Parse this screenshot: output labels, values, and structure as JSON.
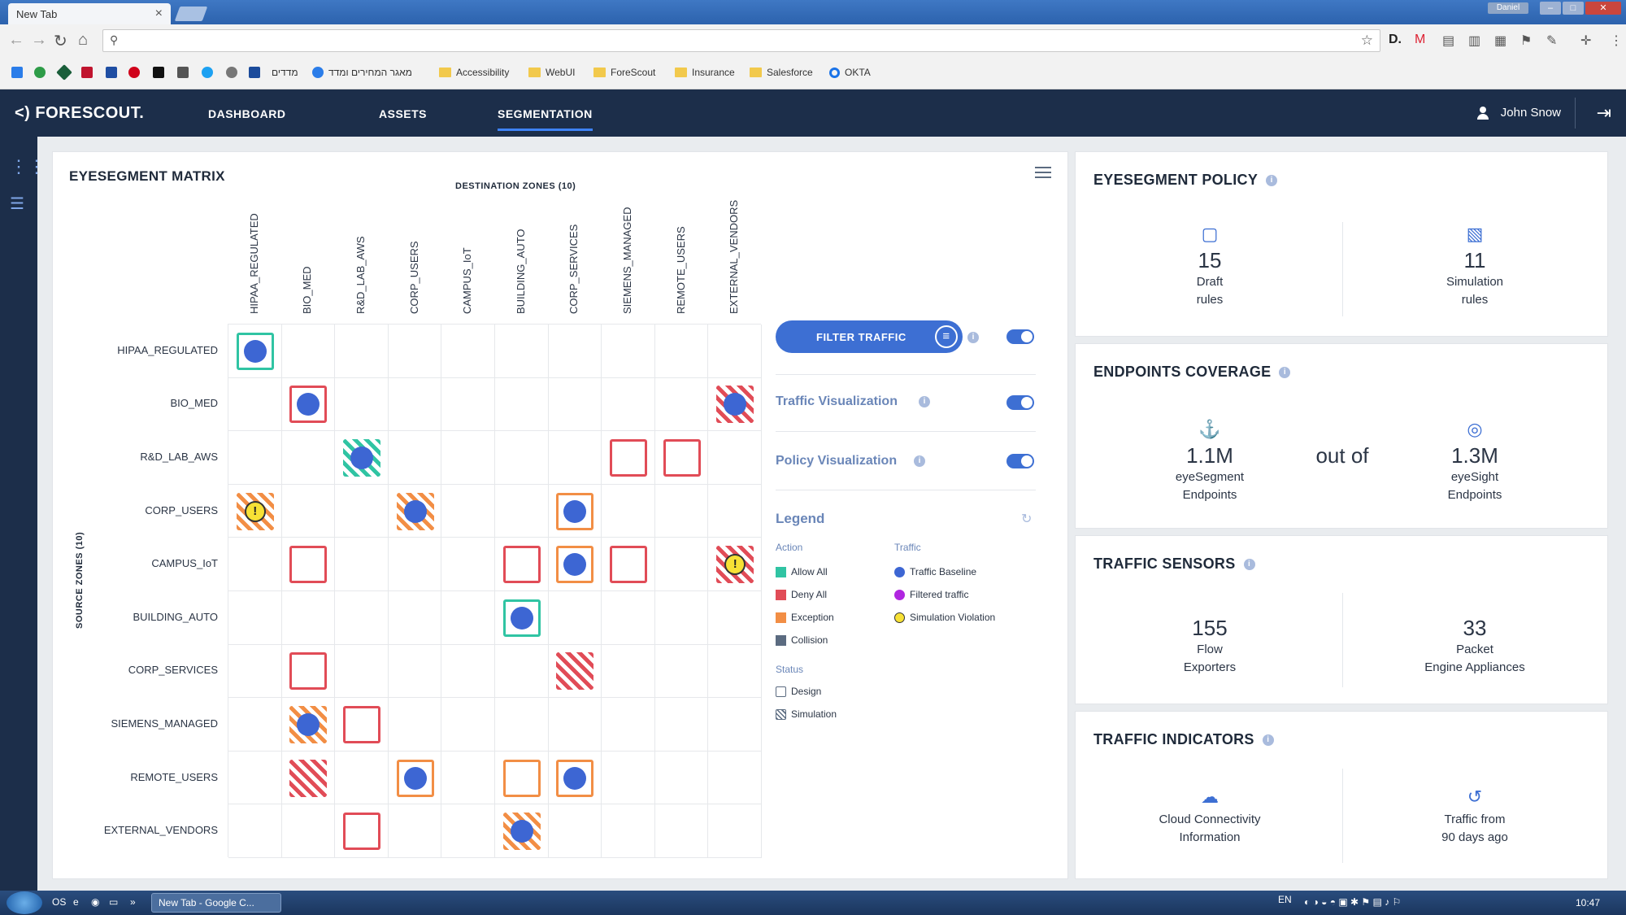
{
  "browser": {
    "tab_title": "New Tab",
    "tab_close": "×",
    "window_user": "Daniel",
    "bookmarks": [
      {
        "label": "מדדים"
      },
      {
        "label": "מאגר המחירים ומדד"
      },
      {
        "label": "Accessibility"
      },
      {
        "label": "WebUI"
      },
      {
        "label": "ForeScout"
      },
      {
        "label": "Insurance"
      },
      {
        "label": "Salesforce"
      },
      {
        "label": "OKTA"
      }
    ]
  },
  "app": {
    "logo": "<) FORESCOUT.",
    "nav": [
      "DASHBOARD",
      "ASSETS",
      "SEGMENTATION"
    ],
    "active_nav": "SEGMENTATION",
    "user": "John Snow"
  },
  "matrix": {
    "title": "EYESEGMENT MATRIX",
    "dest_title": "DESTINATION ZONES (10)",
    "src_title": "SOURCE ZONES (10)",
    "columns": [
      "HIPAA_REGULATED",
      "BIO_MED",
      "R&D_LAB_AWS",
      "CORP_USERS",
      "CAMPUS_IoT",
      "BUILDING_AUTO",
      "CORP_SERVICES",
      "SIEMENS_MANAGED",
      "REMOTE_USERS",
      "EXTERNAL_VENDORS"
    ],
    "rows": [
      "HIPAA_REGULATED",
      "BIO_MED",
      "R&D_LAB_AWS",
      "CORP_USERS",
      "CAMPUS_IoT",
      "BUILDING_AUTO",
      "CORP_SERVICES",
      "SIEMENS_MANAGED",
      "REMOTE_USERS",
      "EXTERNAL_VENDORS"
    ],
    "cells": [
      {
        "row": 0,
        "col": 0,
        "action": "allow",
        "status": "design",
        "traffic": "baseline"
      },
      {
        "row": 1,
        "col": 1,
        "action": "deny",
        "status": "design",
        "traffic": "baseline"
      },
      {
        "row": 1,
        "col": 9,
        "action": "deny",
        "status": "simulation",
        "traffic": "baseline"
      },
      {
        "row": 2,
        "col": 2,
        "action": "allow",
        "status": "simulation",
        "traffic": "baseline"
      },
      {
        "row": 2,
        "col": 7,
        "action": "deny",
        "status": "design",
        "traffic": "none"
      },
      {
        "row": 2,
        "col": 8,
        "action": "deny",
        "status": "design",
        "traffic": "none"
      },
      {
        "row": 3,
        "col": 0,
        "action": "exception",
        "status": "simulation",
        "traffic": "violation"
      },
      {
        "row": 3,
        "col": 3,
        "action": "exception",
        "status": "simulation",
        "traffic": "baseline"
      },
      {
        "row": 3,
        "col": 6,
        "action": "exception",
        "status": "design",
        "traffic": "baseline"
      },
      {
        "row": 4,
        "col": 1,
        "action": "deny",
        "status": "design",
        "traffic": "none"
      },
      {
        "row": 4,
        "col": 5,
        "action": "deny",
        "status": "design",
        "traffic": "none"
      },
      {
        "row": 4,
        "col": 6,
        "action": "exception",
        "status": "design",
        "traffic": "baseline"
      },
      {
        "row": 4,
        "col": 7,
        "action": "deny",
        "status": "design",
        "traffic": "none"
      },
      {
        "row": 4,
        "col": 9,
        "action": "deny",
        "status": "simulation",
        "traffic": "violation"
      },
      {
        "row": 5,
        "col": 5,
        "action": "allow",
        "status": "design",
        "traffic": "baseline"
      },
      {
        "row": 6,
        "col": 1,
        "action": "deny",
        "status": "design",
        "traffic": "none"
      },
      {
        "row": 6,
        "col": 6,
        "action": "deny",
        "status": "simulation",
        "traffic": "none"
      },
      {
        "row": 7,
        "col": 1,
        "action": "exception",
        "status": "simulation",
        "traffic": "baseline"
      },
      {
        "row": 7,
        "col": 2,
        "action": "deny",
        "status": "design",
        "traffic": "none"
      },
      {
        "row": 8,
        "col": 1,
        "action": "deny",
        "status": "simulation",
        "traffic": "none"
      },
      {
        "row": 8,
        "col": 3,
        "action": "exception",
        "status": "design",
        "traffic": "baseline"
      },
      {
        "row": 8,
        "col": 5,
        "action": "exception",
        "status": "design",
        "traffic": "none"
      },
      {
        "row": 8,
        "col": 6,
        "action": "exception",
        "status": "design",
        "traffic": "baseline"
      },
      {
        "row": 9,
        "col": 2,
        "action": "deny",
        "status": "design",
        "traffic": "none"
      },
      {
        "row": 9,
        "col": 5,
        "action": "exception",
        "status": "simulation",
        "traffic": "baseline"
      }
    ],
    "warn_glyph": "!"
  },
  "controls": {
    "filter_label": "FILTER TRAFFIC",
    "traffic_vis_label": "Traffic Visualization",
    "policy_vis_label": "Policy Visualization",
    "info_glyph": "i"
  },
  "legend": {
    "title": "Legend",
    "action_title": "Action",
    "traffic_title": "Traffic",
    "status_title": "Status",
    "action": [
      {
        "label": "Allow All",
        "color": "#30c4a3"
      },
      {
        "label": "Deny All",
        "color": "#e14c57"
      },
      {
        "label": "Exception",
        "color": "#f28e45"
      },
      {
        "label": "Collision",
        "color": "#5b6b80"
      }
    ],
    "traffic": [
      {
        "label": "Traffic Baseline",
        "color": "#3d66d3"
      },
      {
        "label": "Filtered traffic",
        "color": "#b026e0"
      },
      {
        "label": "Simulation Violation",
        "color": "#f7e135"
      }
    ],
    "status": [
      {
        "label": "Design"
      },
      {
        "label": "Simulation"
      }
    ]
  },
  "policy": {
    "title": "EYESEGMENT POLICY",
    "draft_num": "15",
    "draft_l1": "Draft",
    "draft_l2": "rules",
    "sim_num": "11",
    "sim_l1": "Simulation",
    "sim_l2": "rules"
  },
  "coverage": {
    "title": "ENDPOINTS COVERAGE",
    "seg_num": "1.1M",
    "seg_l1": "eyeSegment",
    "seg_l2": "Endpoints",
    "out_of": "out of",
    "sight_num": "1.3M",
    "sight_l1": "eyeSight",
    "sight_l2": "Endpoints"
  },
  "sensors": {
    "title": "TRAFFIC SENSORS",
    "flow_num": "155",
    "flow_l1": "Flow",
    "flow_l2": "Exporters",
    "packet_num": "33",
    "packet_l1": "Packet",
    "packet_l2": "Engine Appliances"
  },
  "indicators": {
    "title": "TRAFFIC INDICATORS",
    "cloud_l1": "Cloud Connectivity",
    "cloud_l2": "Information",
    "hist_l1": "Traffic from",
    "hist_l2": "90 days ago"
  },
  "taskbar": {
    "task": "New Tab - Google C...",
    "lang": "EN",
    "clock": "10:47"
  },
  "colors": {
    "header_bg": "#1c2e4a",
    "accent": "#3d6fd3",
    "allow": "#30c4a3",
    "deny": "#e14c57",
    "exception": "#f28e45"
  }
}
